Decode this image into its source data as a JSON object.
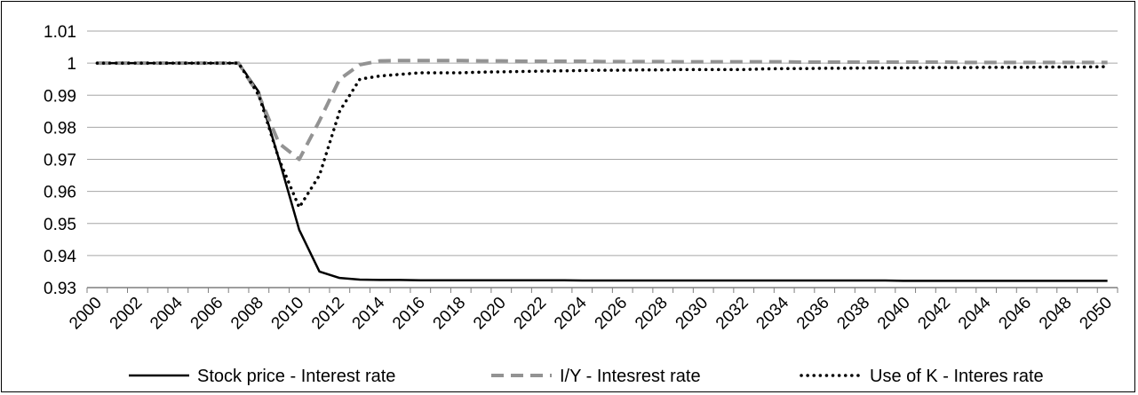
{
  "chart_data": {
    "type": "line",
    "title": "",
    "xlabel": "",
    "ylabel": "",
    "ylim": [
      0.93,
      1.01
    ],
    "yticks": [
      "1.01",
      "1",
      "0.99",
      "0.98",
      "0.97",
      "0.96",
      "0.95",
      "0.94",
      "0.93"
    ],
    "x": [
      2000,
      2001,
      2002,
      2003,
      2004,
      2005,
      2006,
      2007,
      2008,
      2009,
      2010,
      2011,
      2012,
      2013,
      2014,
      2015,
      2016,
      2017,
      2018,
      2019,
      2020,
      2021,
      2022,
      2023,
      2024,
      2025,
      2026,
      2027,
      2028,
      2029,
      2030,
      2031,
      2032,
      2033,
      2034,
      2035,
      2036,
      2037,
      2038,
      2039,
      2040,
      2041,
      2042,
      2043,
      2044,
      2045,
      2046,
      2047,
      2048,
      2049,
      2050
    ],
    "xtick_labels": [
      "2000",
      "2002",
      "2004",
      "2006",
      "2008",
      "2010",
      "2012",
      "2014",
      "2016",
      "2018",
      "2020",
      "2022",
      "2024",
      "2026",
      "2028",
      "2030",
      "2032",
      "2034",
      "2036",
      "2038",
      "2040",
      "2042",
      "2044",
      "2046",
      "2048",
      "2050"
    ],
    "grid": "horizontal",
    "legend_position": "bottom",
    "series": [
      {
        "name": "Stock price - Interest rate",
        "color": "#000000",
        "style": "solid",
        "values": [
          1,
          1,
          1,
          1,
          1,
          1,
          1,
          1,
          0.991,
          0.97,
          0.948,
          0.935,
          0.933,
          0.9325,
          0.9324,
          0.9324,
          0.9323,
          0.9323,
          0.9323,
          0.9323,
          0.9323,
          0.9323,
          0.9323,
          0.9323,
          0.9322,
          0.9322,
          0.9322,
          0.9322,
          0.9322,
          0.9322,
          0.9322,
          0.9322,
          0.9322,
          0.9322,
          0.9322,
          0.9322,
          0.9322,
          0.9322,
          0.9322,
          0.9322,
          0.9321,
          0.9321,
          0.9321,
          0.9321,
          0.9321,
          0.9321,
          0.9321,
          0.9321,
          0.9321,
          0.9321,
          0.9321
        ]
      },
      {
        "name": "I/Y - Intesrest rate",
        "color": "#939393",
        "style": "dashed",
        "values": [
          1,
          1,
          1,
          1,
          1,
          1,
          1,
          1,
          0.99,
          0.975,
          0.97,
          0.982,
          0.995,
          0.9995,
          1.0007,
          1.0008,
          1.0008,
          1.0008,
          1.0008,
          1.0007,
          1.0007,
          1.0006,
          1.0006,
          1.0006,
          1.0006,
          1.0005,
          1.0005,
          1.0005,
          1.0005,
          1.0004,
          1.0004,
          1.0004,
          1.0004,
          1.0004,
          1.0004,
          1.0003,
          1.0003,
          1.0003,
          1.0003,
          1.0003,
          1.0003,
          1.0003,
          1.0003,
          1.0002,
          1.0002,
          1.0002,
          1.0002,
          1.0002,
          1.0002,
          1.0002,
          1.0002
        ]
      },
      {
        "name": "Use of K - Interes rate",
        "color": "#000000",
        "style": "dotted",
        "values": [
          1,
          1,
          1,
          1,
          1,
          1,
          1,
          1,
          0.99,
          0.97,
          0.955,
          0.965,
          0.985,
          0.995,
          0.996,
          0.9965,
          0.997,
          0.997,
          0.997,
          0.9972,
          0.9973,
          0.9974,
          0.9975,
          0.9976,
          0.9977,
          0.9978,
          0.9978,
          0.9979,
          0.9979,
          0.998,
          0.998,
          0.998,
          0.998,
          0.9982,
          0.9983,
          0.9983,
          0.9984,
          0.9984,
          0.9985,
          0.9985,
          0.9985,
          0.9986,
          0.9986,
          0.9986,
          0.9987,
          0.9987,
          0.9987,
          0.9988,
          0.9988,
          0.9988,
          0.9989
        ]
      }
    ]
  }
}
